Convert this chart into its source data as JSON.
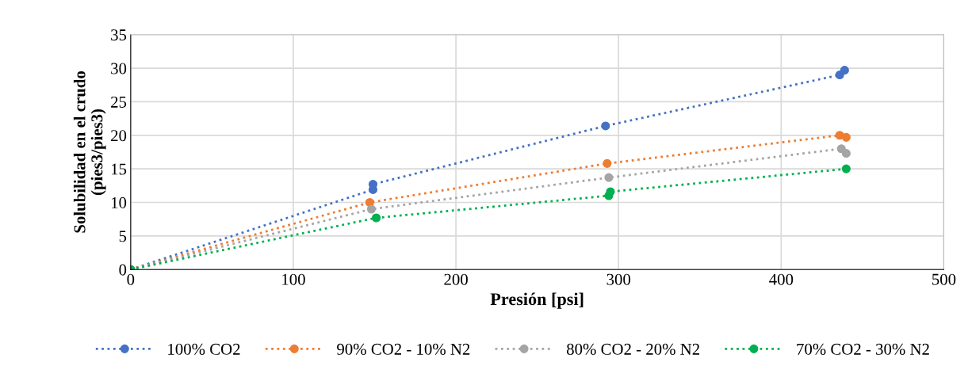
{
  "chart_data": {
    "type": "line",
    "xlabel": "Presión [psi]",
    "ylabel": "Solubilidad en el crudo\n(pies3/pies3)",
    "xlim": [
      0,
      500
    ],
    "xticks": [
      0,
      100,
      200,
      300,
      400,
      500
    ],
    "ylim": [
      0,
      35
    ],
    "yticks": [
      0,
      5,
      10,
      15,
      20,
      25,
      30,
      35
    ],
    "grid": true,
    "legend": "bottom",
    "marker": "circle",
    "line_style": "dotted",
    "series": [
      {
        "name": "100% CO2",
        "color": "#4472c4",
        "x": [
          0,
          149,
          149,
          292,
          436,
          439
        ],
        "values": [
          0,
          11.9,
          12.7,
          21.4,
          29.0,
          29.7
        ]
      },
      {
        "name": "90% CO2 - 10% N2",
        "color": "#ed7d31",
        "x": [
          0,
          147,
          293,
          436,
          440
        ],
        "values": [
          0,
          10.0,
          15.8,
          20.0,
          19.7
        ]
      },
      {
        "name": "80% CO2 - 20% N2",
        "color": "#a5a5a5",
        "x": [
          0,
          148,
          294,
          437,
          440
        ],
        "values": [
          0,
          9.0,
          13.7,
          18.0,
          17.3
        ]
      },
      {
        "name": "70% CO2 - 30% N2",
        "color": "#00b050",
        "x": [
          0,
          151,
          294,
          295,
          440
        ],
        "values": [
          0,
          7.7,
          11.0,
          11.6,
          15.0
        ]
      }
    ]
  }
}
